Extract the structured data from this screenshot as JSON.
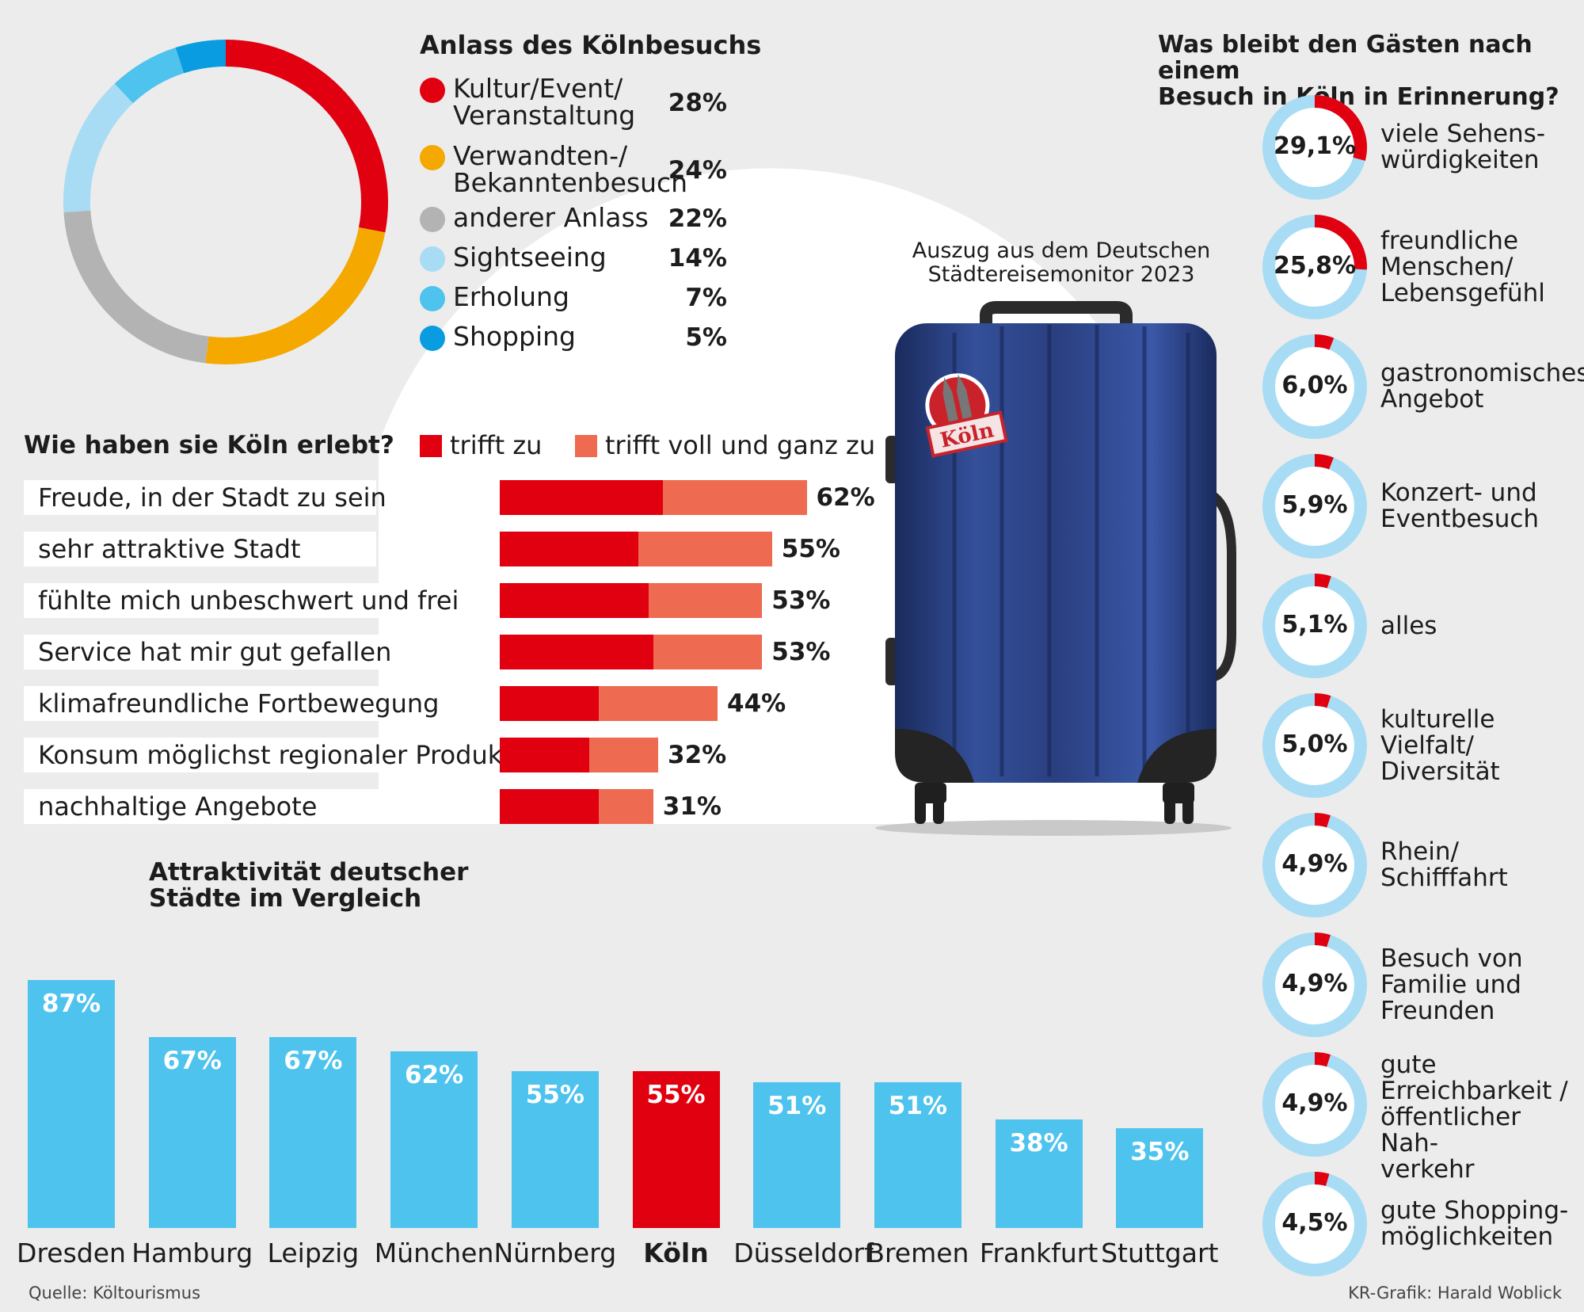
{
  "colors": {
    "red": "#e1000f",
    "orange": "#f4a800",
    "gray": "#b3b3b3",
    "light_blue": "#a7dcf4",
    "blue": "#4ec3ee",
    "dark_blue": "#0a9ce0",
    "salmon": "#ee6a50",
    "ring_bg": "#a7dcf4"
  },
  "chart_data": [
    {
      "type": "pie",
      "title": "Anlass des Kölnbesuchs",
      "categories": [
        "Kultur/Event/ Veranstaltung",
        "Verwandten-/ Bekanntenbesuch",
        "anderer Anlass",
        "Sightseeing",
        "Erholung",
        "Shopping"
      ],
      "labels_line1": [
        "Kultur/Event/",
        "Verwandten-/",
        "anderer Anlass",
        "Sightseeing",
        "Erholung",
        "Shopping"
      ],
      "labels_line2": [
        "Veranstaltung",
        "Bekanntenbesuch",
        "",
        "",
        "",
        ""
      ],
      "values": [
        28,
        24,
        22,
        14,
        7,
        5
      ],
      "value_labels": [
        "28%",
        "24%",
        "22%",
        "14%",
        "7%",
        "5%"
      ],
      "colors": [
        "#e1000f",
        "#f4a800",
        "#b3b3b3",
        "#a7dcf4",
        "#4ec3ee",
        "#0a9ce0"
      ]
    },
    {
      "type": "bar",
      "orientation": "horizontal-stacked",
      "title": "Wie haben sie Köln erlebt?",
      "legend": [
        "trifft zu",
        "trifft voll und ganz zu"
      ],
      "categories": [
        "Freude, in der Stadt zu sein",
        "sehr attraktive Stadt",
        "fühlte mich unbeschwert und frei",
        "Service hat mir gut gefallen",
        "klimafreundliche Fortbewegung",
        "Konsum möglichst regionaler Produkte",
        "nachhaltige Angebote"
      ],
      "series": [
        {
          "name": "trifft zu",
          "values": [
            33,
            28,
            30,
            31,
            20,
            18,
            20
          ]
        },
        {
          "name": "trifft voll und ganz zu",
          "values": [
            29,
            27,
            23,
            22,
            24,
            14,
            11
          ]
        }
      ],
      "totals": [
        "62%",
        "55%",
        "53%",
        "53%",
        "44%",
        "32%",
        "31%"
      ],
      "xlim": [
        0,
        62
      ]
    },
    {
      "type": "bar",
      "title": "Attraktivität deutscher Städte im Vergleich",
      "categories": [
        "Dresden",
        "Hamburg",
        "Leipzig",
        "München",
        "Nürnberg",
        "Köln",
        "Düsseldorf",
        "Bremen",
        "Frankfurt",
        "Stuttgart"
      ],
      "values": [
        87,
        67,
        67,
        62,
        55,
        55,
        51,
        51,
        38,
        35
      ],
      "value_labels": [
        "87%",
        "67%",
        "67%",
        "62%",
        "55%",
        "55%",
        "51%",
        "51%",
        "38%",
        "35%"
      ],
      "highlight": "Köln",
      "ylim": [
        0,
        87
      ]
    },
    {
      "type": "pie",
      "subtype": "progress-rings",
      "title": "Was bleibt den Gästen nach einem Besuch in Köln in Erinnerung?",
      "values": [
        29.1,
        25.8,
        6.0,
        5.9,
        5.1,
        5.0,
        4.9,
        4.9,
        4.9,
        4.5
      ],
      "value_labels": [
        "29,1%",
        "25,8%",
        "6,0%",
        "5,9%",
        "5,1%",
        "5,0%",
        "4,9%",
        "4,9%",
        "4,9%",
        "4,5%"
      ],
      "categories": [
        [
          "viele Sehens-",
          "würdigkeiten"
        ],
        [
          "freundliche",
          "Menschen/",
          "Lebensgefühl"
        ],
        [
          "gastronomisches",
          "Angebot"
        ],
        [
          "Konzert- und",
          "Eventbesuch"
        ],
        [
          "alles"
        ],
        [
          "kulturelle",
          "Vielfalt/",
          "Diversität"
        ],
        [
          "Rhein/",
          "Schifffahrt"
        ],
        [
          "Besuch von",
          "Familie und",
          "Freunden"
        ],
        [
          "gute",
          "Erreichbarkeit /",
          "öffentlicher Nah-",
          "verkehr"
        ],
        [
          "gute Shopping-",
          "möglichkeiten"
        ]
      ]
    }
  ],
  "texts": {
    "pie_title": "Anlass des Kölnbesuchs",
    "memory_title_1": "Was bleibt den Gästen nach einem",
    "memory_title_2": "Besuch in Köln in Erinnerung?",
    "experience_title": "Wie haben sie Köln erlebt?",
    "legend_a": "trifft zu",
    "legend_b": "trifft voll und ganz zu",
    "excerpt_1": "Auszug aus dem Deutschen",
    "excerpt_2": "Städtereisemonitor 2023",
    "suitcase_sticker": "Köln",
    "city_title_1": "Attraktivität deutscher",
    "city_title_2": "Städte im Vergleich",
    "source": "Quelle: Költourismus",
    "credit": "KR-Grafik: Harald Woblick"
  }
}
